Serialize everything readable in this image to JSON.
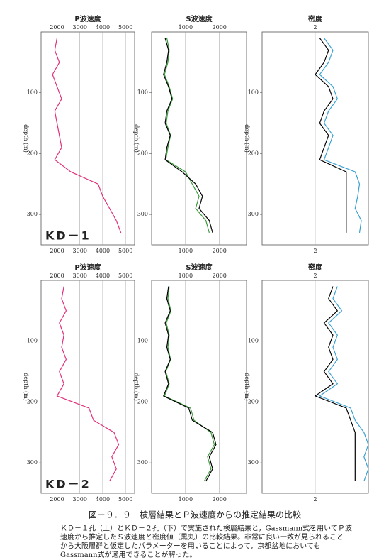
{
  "chart_data": [
    {
      "type": "line",
      "title": "P波速度",
      "annotation": "KD－1",
      "xlabel": "depth (m)",
      "x": [
        10,
        30,
        50,
        70,
        90,
        110,
        130,
        150,
        170,
        190,
        210,
        230,
        250,
        270,
        290,
        310,
        330
      ],
      "xlim": [
        0,
        350
      ],
      "xticks": [
        100,
        200,
        300
      ],
      "ylim": [
        1300,
        5400
      ],
      "yticks": [
        2000,
        3000,
        4000,
        5000
      ],
      "series": [
        {
          "color": "#e0307a",
          "values": [
            2000,
            1900,
            2100,
            1800,
            2000,
            2200,
            1900,
            2000,
            2100,
            2200,
            1900,
            2600,
            3800,
            4000,
            4300,
            4600,
            4800
          ]
        }
      ]
    },
    {
      "type": "line",
      "title": "S波速度",
      "xlabel": "depth (m)",
      "x": [
        10,
        30,
        50,
        70,
        90,
        110,
        130,
        150,
        170,
        190,
        210,
        230,
        250,
        270,
        290,
        310,
        330
      ],
      "xlim": [
        0,
        350
      ],
      "xticks": [
        100,
        200,
        300
      ],
      "ylim": [
        0,
        2800
      ],
      "yticks": [
        1000,
        2000
      ],
      "series": [
        {
          "color": "#3a9a3a",
          "values": [
            450,
            520,
            480,
            380,
            520,
            620,
            480,
            430,
            560,
            480,
            420,
            1000,
            1200,
            1400,
            1300,
            1600,
            1700
          ]
        },
        {
          "color": "#000000",
          "values": [
            400,
            500,
            450,
            350,
            500,
            600,
            450,
            400,
            550,
            450,
            400,
            900,
            1300,
            1500,
            1400,
            1700,
            1800
          ]
        }
      ]
    },
    {
      "type": "line",
      "title": "密度",
      "xlabel": "depth (m)",
      "x": [
        10,
        30,
        50,
        70,
        90,
        110,
        130,
        150,
        170,
        190,
        210,
        230,
        250,
        270,
        290,
        310,
        330
      ],
      "xlim": [
        0,
        350
      ],
      "xticks": [
        100,
        200,
        300
      ],
      "ylim": [
        1.4,
        2.6
      ],
      "yticks": [
        2
      ],
      "series": [
        {
          "color": "#3aa0d0",
          "values": [
            2.1,
            2.2,
            2.15,
            2.05,
            2.2,
            2.25,
            2.15,
            2.1,
            2.2,
            2.15,
            2.1,
            2.45,
            2.5,
            2.48,
            2.45,
            2.52,
            2.5
          ]
        },
        {
          "color": "#000000",
          "values": [
            2.05,
            2.15,
            2.1,
            2.0,
            2.15,
            2.2,
            2.1,
            2.05,
            2.15,
            2.1,
            2.05,
            2.35,
            2.35,
            2.35,
            2.35,
            2.35,
            2.35
          ]
        }
      ]
    },
    {
      "type": "line",
      "title": "P波速度",
      "annotation": "KD－2",
      "xlabel": "depth (m)",
      "x": [
        10,
        30,
        50,
        70,
        90,
        110,
        130,
        150,
        170,
        190,
        210,
        230,
        250,
        270,
        290,
        310,
        330
      ],
      "xlim": [
        0,
        350
      ],
      "xticks": [
        100,
        200,
        300
      ],
      "ylim": [
        1300,
        5400
      ],
      "yticks": [
        2000,
        3000,
        4000,
        5000
      ],
      "series": [
        {
          "color": "#e0307a",
          "values": [
            2300,
            2200,
            2400,
            2100,
            2300,
            2200,
            2400,
            2100,
            2300,
            2000,
            3400,
            3600,
            4500,
            4700,
            4400,
            4600,
            4300
          ]
        }
      ]
    },
    {
      "type": "line",
      "title": "S波速度",
      "xlabel": "depth (m)",
      "x": [
        10,
        30,
        50,
        70,
        90,
        110,
        130,
        150,
        170,
        190,
        210,
        230,
        250,
        270,
        290,
        310,
        330
      ],
      "xlim": [
        0,
        350
      ],
      "xticks": [
        100,
        200,
        300
      ],
      "ylim": [
        0,
        2800
      ],
      "yticks": [
        1000,
        2000
      ],
      "series": [
        {
          "color": "#3a9a3a",
          "values": [
            520,
            480,
            570,
            430,
            520,
            480,
            560,
            420,
            520,
            380,
            1150,
            1250,
            1750,
            1850,
            1650,
            1750,
            1550
          ]
        },
        {
          "color": "#000000",
          "values": [
            500,
            450,
            550,
            400,
            500,
            450,
            550,
            400,
            500,
            350,
            1100,
            1200,
            1800,
            1900,
            1700,
            1800,
            1600
          ]
        }
      ]
    },
    {
      "type": "line",
      "title": "密度",
      "xlabel": "depth (m)",
      "x": [
        10,
        30,
        50,
        70,
        90,
        110,
        130,
        150,
        170,
        190,
        210,
        230,
        250,
        270,
        290,
        310,
        330
      ],
      "xlim": [
        0,
        350
      ],
      "xticks": [
        100,
        200,
        300
      ],
      "ylim": [
        1.4,
        2.6
      ],
      "yticks": [
        2
      ],
      "series": [
        {
          "color": "#3aa0d0",
          "values": [
            2.25,
            2.2,
            2.3,
            2.15,
            2.25,
            2.2,
            2.25,
            2.15,
            2.25,
            2.05,
            2.4,
            2.45,
            2.55,
            2.6,
            2.55,
            2.6,
            2.55
          ]
        },
        {
          "color": "#000000",
          "values": [
            2.2,
            2.15,
            2.25,
            2.1,
            2.2,
            2.15,
            2.2,
            2.1,
            2.2,
            2.0,
            2.35,
            2.4,
            2.45,
            2.45,
            2.45,
            2.45,
            2.45
          ]
        }
      ]
    }
  ],
  "caption": {
    "title": "図－９．９　検層結果とＰ波速度からの推定結果の比較",
    "lines": [
      "ＫＤ－１孔（上）とＫＤ－２孔（下）で実施された検層結果と，Gassmann式を用いてＰ波",
      "速度から推定したＳ波速度と密度値（黒丸）の比較結果。非常に良い一致が見られること",
      "から大阪層群と仮定したパラメーターを用いることによって，京都盆地においても",
      "Gassmann式が適用できることが解った。"
    ]
  }
}
